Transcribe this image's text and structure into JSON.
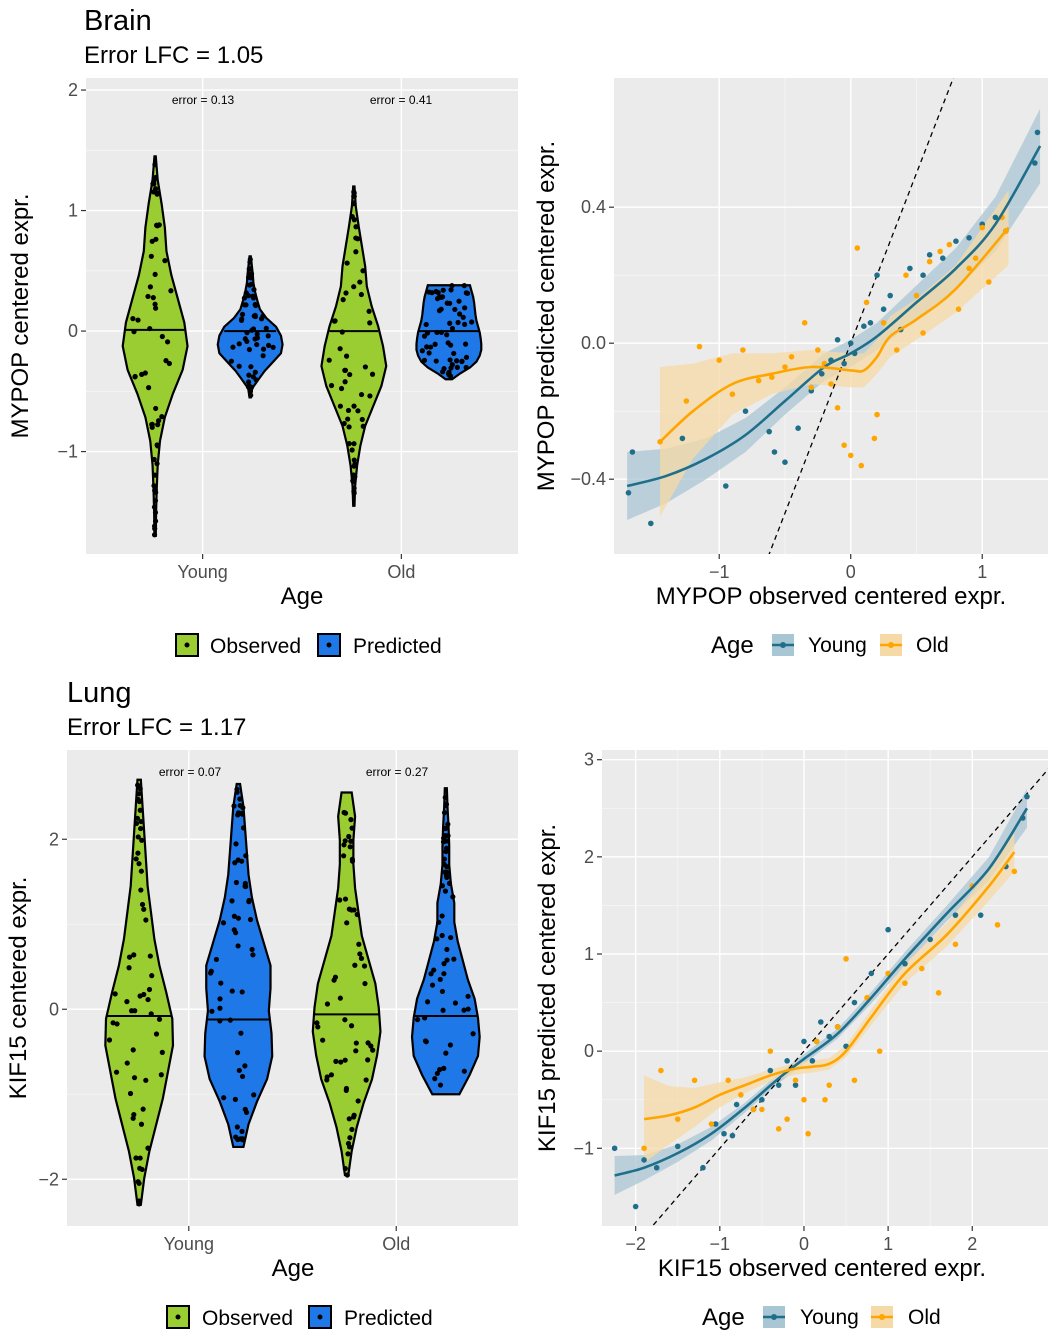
{
  "colors": {
    "panel_bg": "#ebebeb",
    "grid": "#ffffff",
    "observed": "#9acd32",
    "predicted": "#1f78e8",
    "young": "#1f6f8b",
    "young_band": "#a9c6d4",
    "old": "#ffa500",
    "old_band": "#f5d9a6"
  },
  "legends": {
    "violin": {
      "observed": "Observed",
      "predicted": "Predicted"
    },
    "scatter": {
      "title": "Age",
      "young": "Young",
      "old": "Old"
    }
  },
  "chart_data": [
    {
      "type": "violin",
      "title": "Brain",
      "subtitle": "Error LFC = 1.05",
      "xlabel": "Age",
      "ylabel": "MYPOP centered expr.",
      "categories": [
        "Young",
        "Old"
      ],
      "series": [
        {
          "name": "Observed"
        },
        {
          "name": "Predicted"
        }
      ],
      "ylim": [
        -1.85,
        2.1
      ],
      "yticks": [
        -1,
        0,
        1,
        2
      ],
      "ytick_labels": [
        "−1",
        "0",
        "1",
        "2"
      ],
      "annotations": [
        "error = 0.13",
        "error = 0.41"
      ],
      "groups": [
        {
          "category": "Young",
          "series": "Observed",
          "median": 0.01,
          "min": -1.7,
          "max": 1.45,
          "profile": [
            0.02,
            0.03,
            0.05,
            0.08,
            0.15,
            0.3,
            0.55,
            0.85,
            1.0,
            0.9,
            0.7,
            0.5,
            0.35,
            0.3,
            0.2,
            0.08,
            0.02
          ]
        },
        {
          "category": "Young",
          "series": "Predicted",
          "median": 0.0,
          "min": -0.55,
          "max": 0.62,
          "profile": [
            0.02,
            0.06,
            0.25,
            0.45,
            0.7,
            0.95,
            1.0,
            0.95,
            0.8,
            0.5,
            0.3,
            0.22,
            0.15,
            0.1,
            0.08,
            0.05,
            0.02
          ]
        },
        {
          "category": "Old",
          "series": "Observed",
          "median": 0.0,
          "min": -1.45,
          "max": 1.2,
          "profile": [
            0.02,
            0.04,
            0.1,
            0.2,
            0.35,
            0.6,
            0.85,
            1.0,
            0.9,
            0.75,
            0.55,
            0.4,
            0.35,
            0.25,
            0.15,
            0.06,
            0.02
          ]
        },
        {
          "category": "Old",
          "series": "Predicted",
          "median": 0.0,
          "min": -0.4,
          "max": 0.38,
          "profile": [
            0.1,
            0.35,
            0.65,
            0.85,
            0.95,
            1.0,
            1.0,
            0.98,
            0.95,
            0.9,
            0.85,
            0.82,
            0.8,
            0.78,
            0.75,
            0.7,
            0.65
          ]
        }
      ]
    },
    {
      "type": "scatter",
      "xlabel": "MYPOP observed centered expr.",
      "ylabel": "MYPOP predicted centered expr.",
      "xlim": [
        -1.8,
        1.5
      ],
      "ylim": [
        -0.62,
        0.78
      ],
      "xticks": [
        -1,
        0,
        1
      ],
      "xtick_labels": [
        "−1",
        "0",
        "1"
      ],
      "yticks": [
        -0.4,
        0.0,
        0.4
      ],
      "ytick_labels": [
        "−0.4",
        "0.0",
        "0.4"
      ],
      "identity_line": true,
      "series": [
        {
          "name": "Young",
          "fit": [
            [
              -1.7,
              -0.42
            ],
            [
              -1.4,
              -0.39
            ],
            [
              -1.1,
              -0.34
            ],
            [
              -0.8,
              -0.27
            ],
            [
              -0.5,
              -0.17
            ],
            [
              -0.2,
              -0.07
            ],
            [
              0.0,
              -0.03
            ],
            [
              0.2,
              0.02
            ],
            [
              0.5,
              0.12
            ],
            [
              0.8,
              0.22
            ],
            [
              1.1,
              0.35
            ],
            [
              1.44,
              0.58
            ]
          ],
          "band": [
            0.1,
            0.08,
            0.06,
            0.05,
            0.04,
            0.04,
            0.04,
            0.04,
            0.05,
            0.06,
            0.08,
            0.11
          ],
          "x": [
            -1.69,
            -1.66,
            -1.52,
            -1.28,
            -0.95,
            -0.8,
            -0.62,
            -0.58,
            -0.5,
            -0.4,
            -0.3,
            -0.22,
            -0.15,
            -0.1,
            -0.05,
            0.0,
            0.03,
            0.1,
            0.15,
            0.2,
            0.25,
            0.3,
            0.38,
            0.45,
            0.55,
            0.6,
            0.7,
            0.8,
            0.9,
            1.0,
            1.1,
            1.18,
            1.4,
            1.42
          ],
          "y": [
            -0.44,
            -0.32,
            -0.53,
            -0.28,
            -0.42,
            -0.2,
            -0.26,
            -0.32,
            -0.35,
            -0.25,
            -0.14,
            -0.09,
            -0.05,
            0.01,
            -0.06,
            0.0,
            -0.03,
            0.05,
            0.06,
            0.2,
            0.1,
            0.14,
            0.04,
            0.22,
            0.2,
            0.26,
            0.25,
            0.3,
            0.31,
            0.35,
            0.37,
            0.33,
            0.53,
            0.62
          ]
        },
        {
          "name": "Old",
          "fit": [
            [
              -1.45,
              -0.29
            ],
            [
              -1.2,
              -0.2
            ],
            [
              -0.9,
              -0.12
            ],
            [
              -0.6,
              -0.09
            ],
            [
              -0.3,
              -0.07
            ],
            [
              0.0,
              -0.08
            ],
            [
              0.1,
              -0.08
            ],
            [
              0.2,
              -0.04
            ],
            [
              0.3,
              0.02
            ],
            [
              0.5,
              0.07
            ],
            [
              0.8,
              0.16
            ],
            [
              1.2,
              0.34
            ]
          ],
          "band": [
            0.22,
            0.14,
            0.09,
            0.06,
            0.05,
            0.05,
            0.05,
            0.05,
            0.06,
            0.06,
            0.07,
            0.11
          ],
          "x": [
            -1.45,
            -1.25,
            -1.15,
            -1.0,
            -0.9,
            -0.82,
            -0.7,
            -0.6,
            -0.5,
            -0.45,
            -0.35,
            -0.3,
            -0.25,
            -0.2,
            -0.15,
            -0.1,
            -0.05,
            0.0,
            0.05,
            0.08,
            0.12,
            0.18,
            0.2,
            0.25,
            0.35,
            0.42,
            0.5,
            0.55,
            0.6,
            0.68,
            0.75,
            0.82,
            0.9,
            0.95,
            1.0,
            1.05,
            1.15,
            1.18
          ],
          "y": [
            -0.29,
            -0.17,
            -0.01,
            -0.05,
            -0.15,
            -0.02,
            -0.11,
            -0.1,
            -0.07,
            -0.04,
            0.06,
            -0.13,
            -0.02,
            -0.06,
            -0.12,
            -0.19,
            -0.3,
            -0.33,
            0.28,
            -0.36,
            0.12,
            -0.28,
            -0.21,
            0.06,
            -0.02,
            0.2,
            0.14,
            0.03,
            0.24,
            0.27,
            0.29,
            0.1,
            0.22,
            0.25,
            0.34,
            0.18,
            0.37,
            0.33
          ]
        }
      ]
    },
    {
      "type": "violin",
      "title": "Lung",
      "subtitle": "Error LFC = 1.17",
      "xlabel": "Age",
      "ylabel": "KIF15 centered expr.",
      "categories": [
        "Young",
        "Old"
      ],
      "series": [
        {
          "name": "Observed"
        },
        {
          "name": "Predicted"
        }
      ],
      "ylim": [
        -2.55,
        3.05
      ],
      "yticks": [
        -2,
        0,
        2
      ],
      "ytick_labels": [
        "−2",
        "0",
        "2"
      ],
      "annotations": [
        "error = 0.07",
        "error = 0.27"
      ],
      "groups": [
        {
          "category": "Young",
          "series": "Observed",
          "median": -0.08,
          "min": -2.3,
          "max": 2.7,
          "profile": [
            0.05,
            0.15,
            0.3,
            0.5,
            0.7,
            0.85,
            1.0,
            0.98,
            0.8,
            0.6,
            0.45,
            0.35,
            0.25,
            0.2,
            0.15,
            0.1,
            0.05
          ]
        },
        {
          "category": "Young",
          "series": "Predicted",
          "median": -0.12,
          "min": -1.62,
          "max": 2.65,
          "profile": [
            0.15,
            0.3,
            0.55,
            0.85,
            1.0,
            0.98,
            0.9,
            0.95,
            0.95,
            0.75,
            0.55,
            0.4,
            0.3,
            0.25,
            0.2,
            0.15,
            0.05
          ]
        },
        {
          "category": "Old",
          "series": "Observed",
          "median": -0.06,
          "min": -1.95,
          "max": 2.55,
          "profile": [
            0.05,
            0.15,
            0.3,
            0.5,
            0.75,
            0.9,
            1.0,
            0.95,
            0.85,
            0.65,
            0.45,
            0.35,
            0.25,
            0.2,
            0.2,
            0.25,
            0.15
          ]
        },
        {
          "category": "Old",
          "series": "Predicted",
          "median": -0.08,
          "min": -1.0,
          "max": 2.6,
          "profile": [
            0.4,
            0.7,
            0.95,
            1.0,
            0.95,
            0.85,
            0.65,
            0.5,
            0.35,
            0.25,
            0.25,
            0.15,
            0.1,
            0.1,
            0.08,
            0.05,
            0.03
          ]
        }
      ]
    },
    {
      "type": "scatter",
      "xlabel": "KIF15 observed centered expr.",
      "ylabel": "KIF15 predicted centered expr.",
      "xlim": [
        -2.4,
        2.9
      ],
      "ylim": [
        -1.8,
        3.1
      ],
      "xticks": [
        -2,
        -1,
        0,
        1,
        2
      ],
      "xtick_labels": [
        "−2",
        "−1",
        "0",
        "1",
        "2"
      ],
      "yticks": [
        -1,
        0,
        1,
        2,
        3
      ],
      "ytick_labels": [
        "−1",
        "0",
        "1",
        "2",
        "3"
      ],
      "identity_line": true,
      "series": [
        {
          "name": "Young",
          "fit": [
            [
              -2.25,
              -1.28
            ],
            [
              -1.9,
              -1.2
            ],
            [
              -1.5,
              -1.05
            ],
            [
              -1.1,
              -0.85
            ],
            [
              -0.7,
              -0.58
            ],
            [
              -0.3,
              -0.28
            ],
            [
              0.0,
              -0.08
            ],
            [
              0.4,
              0.18
            ],
            [
              0.8,
              0.55
            ],
            [
              1.2,
              0.95
            ],
            [
              1.7,
              1.42
            ],
            [
              2.2,
              1.88
            ],
            [
              2.65,
              2.5
            ]
          ],
          "band": [
            0.2,
            0.13,
            0.09,
            0.07,
            0.05,
            0.05,
            0.05,
            0.05,
            0.06,
            0.07,
            0.08,
            0.12,
            0.2
          ],
          "x": [
            -2.25,
            -2.0,
            -1.9,
            -1.75,
            -1.5,
            -1.2,
            -1.05,
            -0.95,
            -0.85,
            -0.8,
            -0.6,
            -0.5,
            -0.4,
            -0.3,
            -0.2,
            -0.1,
            0.0,
            0.1,
            0.15,
            0.2,
            0.3,
            0.4,
            0.5,
            0.6,
            0.8,
            1.0,
            1.2,
            1.5,
            1.8,
            2.1,
            2.4,
            2.6,
            2.65
          ],
          "y": [
            -1.0,
            -1.6,
            -1.12,
            -1.2,
            -0.98,
            -1.2,
            -0.75,
            -0.85,
            -0.87,
            -0.55,
            -0.6,
            -0.5,
            -0.2,
            -0.35,
            -0.1,
            -0.35,
            0.1,
            -0.1,
            0.1,
            0.3,
            0.15,
            0.25,
            0.05,
            0.5,
            0.8,
            1.25,
            0.9,
            1.15,
            1.4,
            1.4,
            1.9,
            2.4,
            2.62
          ]
        },
        {
          "name": "Old",
          "fit": [
            [
              -1.9,
              -0.7
            ],
            [
              -1.6,
              -0.66
            ],
            [
              -1.3,
              -0.58
            ],
            [
              -1.0,
              -0.45
            ],
            [
              -0.7,
              -0.35
            ],
            [
              -0.4,
              -0.25
            ],
            [
              -0.1,
              -0.18
            ],
            [
              0.1,
              -0.16
            ],
            [
              0.3,
              -0.13
            ],
            [
              0.5,
              0.0
            ],
            [
              0.8,
              0.35
            ],
            [
              1.2,
              0.8
            ],
            [
              1.7,
              1.2
            ],
            [
              2.2,
              1.7
            ],
            [
              2.5,
              2.05
            ]
          ],
          "band": [
            0.45,
            0.3,
            0.2,
            0.13,
            0.08,
            0.06,
            0.06,
            0.06,
            0.06,
            0.06,
            0.08,
            0.1,
            0.12,
            0.15,
            0.2
          ],
          "x": [
            -1.9,
            -1.7,
            -1.5,
            -1.3,
            -1.1,
            -0.9,
            -0.75,
            -0.6,
            -0.5,
            -0.4,
            -0.3,
            -0.2,
            -0.1,
            0.0,
            0.05,
            0.15,
            0.25,
            0.3,
            0.4,
            0.5,
            0.6,
            0.75,
            0.9,
            1.0,
            1.2,
            1.4,
            1.6,
            1.8,
            2.0,
            2.3,
            2.5
          ],
          "y": [
            -1.0,
            -0.2,
            -0.7,
            -0.3,
            -0.75,
            -0.3,
            -0.45,
            -0.6,
            -0.6,
            0.0,
            -0.8,
            -0.7,
            -0.3,
            -0.5,
            -0.85,
            0.1,
            -0.5,
            -0.35,
            0.25,
            0.95,
            -0.3,
            0.55,
            0.0,
            0.8,
            0.7,
            0.85,
            0.6,
            1.1,
            1.7,
            1.3,
            1.85
          ]
        }
      ]
    }
  ]
}
